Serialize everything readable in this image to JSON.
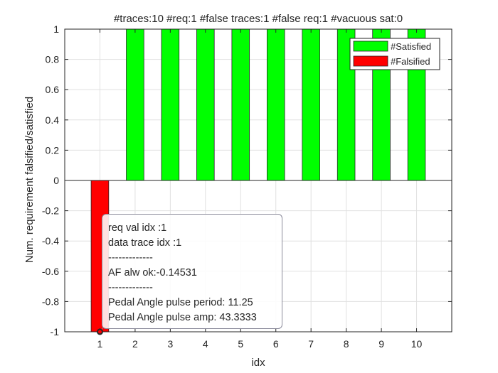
{
  "chart_data": {
    "type": "bar",
    "title": "#traces:10  #req:1  #false traces:1  #false req:1  #vacuous sat:0",
    "xlabel": "idx",
    "ylabel": "Num. requirement falsified/satisfied",
    "ylim": [
      -1,
      1
    ],
    "xlim": [
      0,
      11
    ],
    "xticks": [
      "1",
      "2",
      "3",
      "4",
      "5",
      "6",
      "7",
      "8",
      "9",
      "10"
    ],
    "yticks": [
      "-1",
      "-0.8",
      "-0.6",
      "-0.4",
      "-0.2",
      "0",
      "0.2",
      "0.4",
      "0.6",
      "0.8",
      "1"
    ],
    "grid": true,
    "legend_position": "top-right",
    "categories": [
      1,
      2,
      3,
      4,
      5,
      6,
      7,
      8,
      9,
      10
    ],
    "series": [
      {
        "name": "#Satisfied",
        "color": "#00ff00",
        "values": [
          0,
          1,
          1,
          1,
          1,
          1,
          1,
          1,
          1,
          1
        ]
      },
      {
        "name": "#Falsified",
        "color": "#ff0000",
        "values": [
          -1,
          0,
          0,
          0,
          0,
          0,
          0,
          0,
          0,
          0
        ]
      }
    ],
    "datatip": {
      "x": 1,
      "y": -1,
      "lines": [
        "req val idx :1",
        "data trace idx :1",
        "-------------",
        "AF alw ok:-0.14531",
        "-------------",
        "Pedal Angle pulse period: 11.25",
        "Pedal Angle pulse amp: 43.3333"
      ]
    }
  }
}
